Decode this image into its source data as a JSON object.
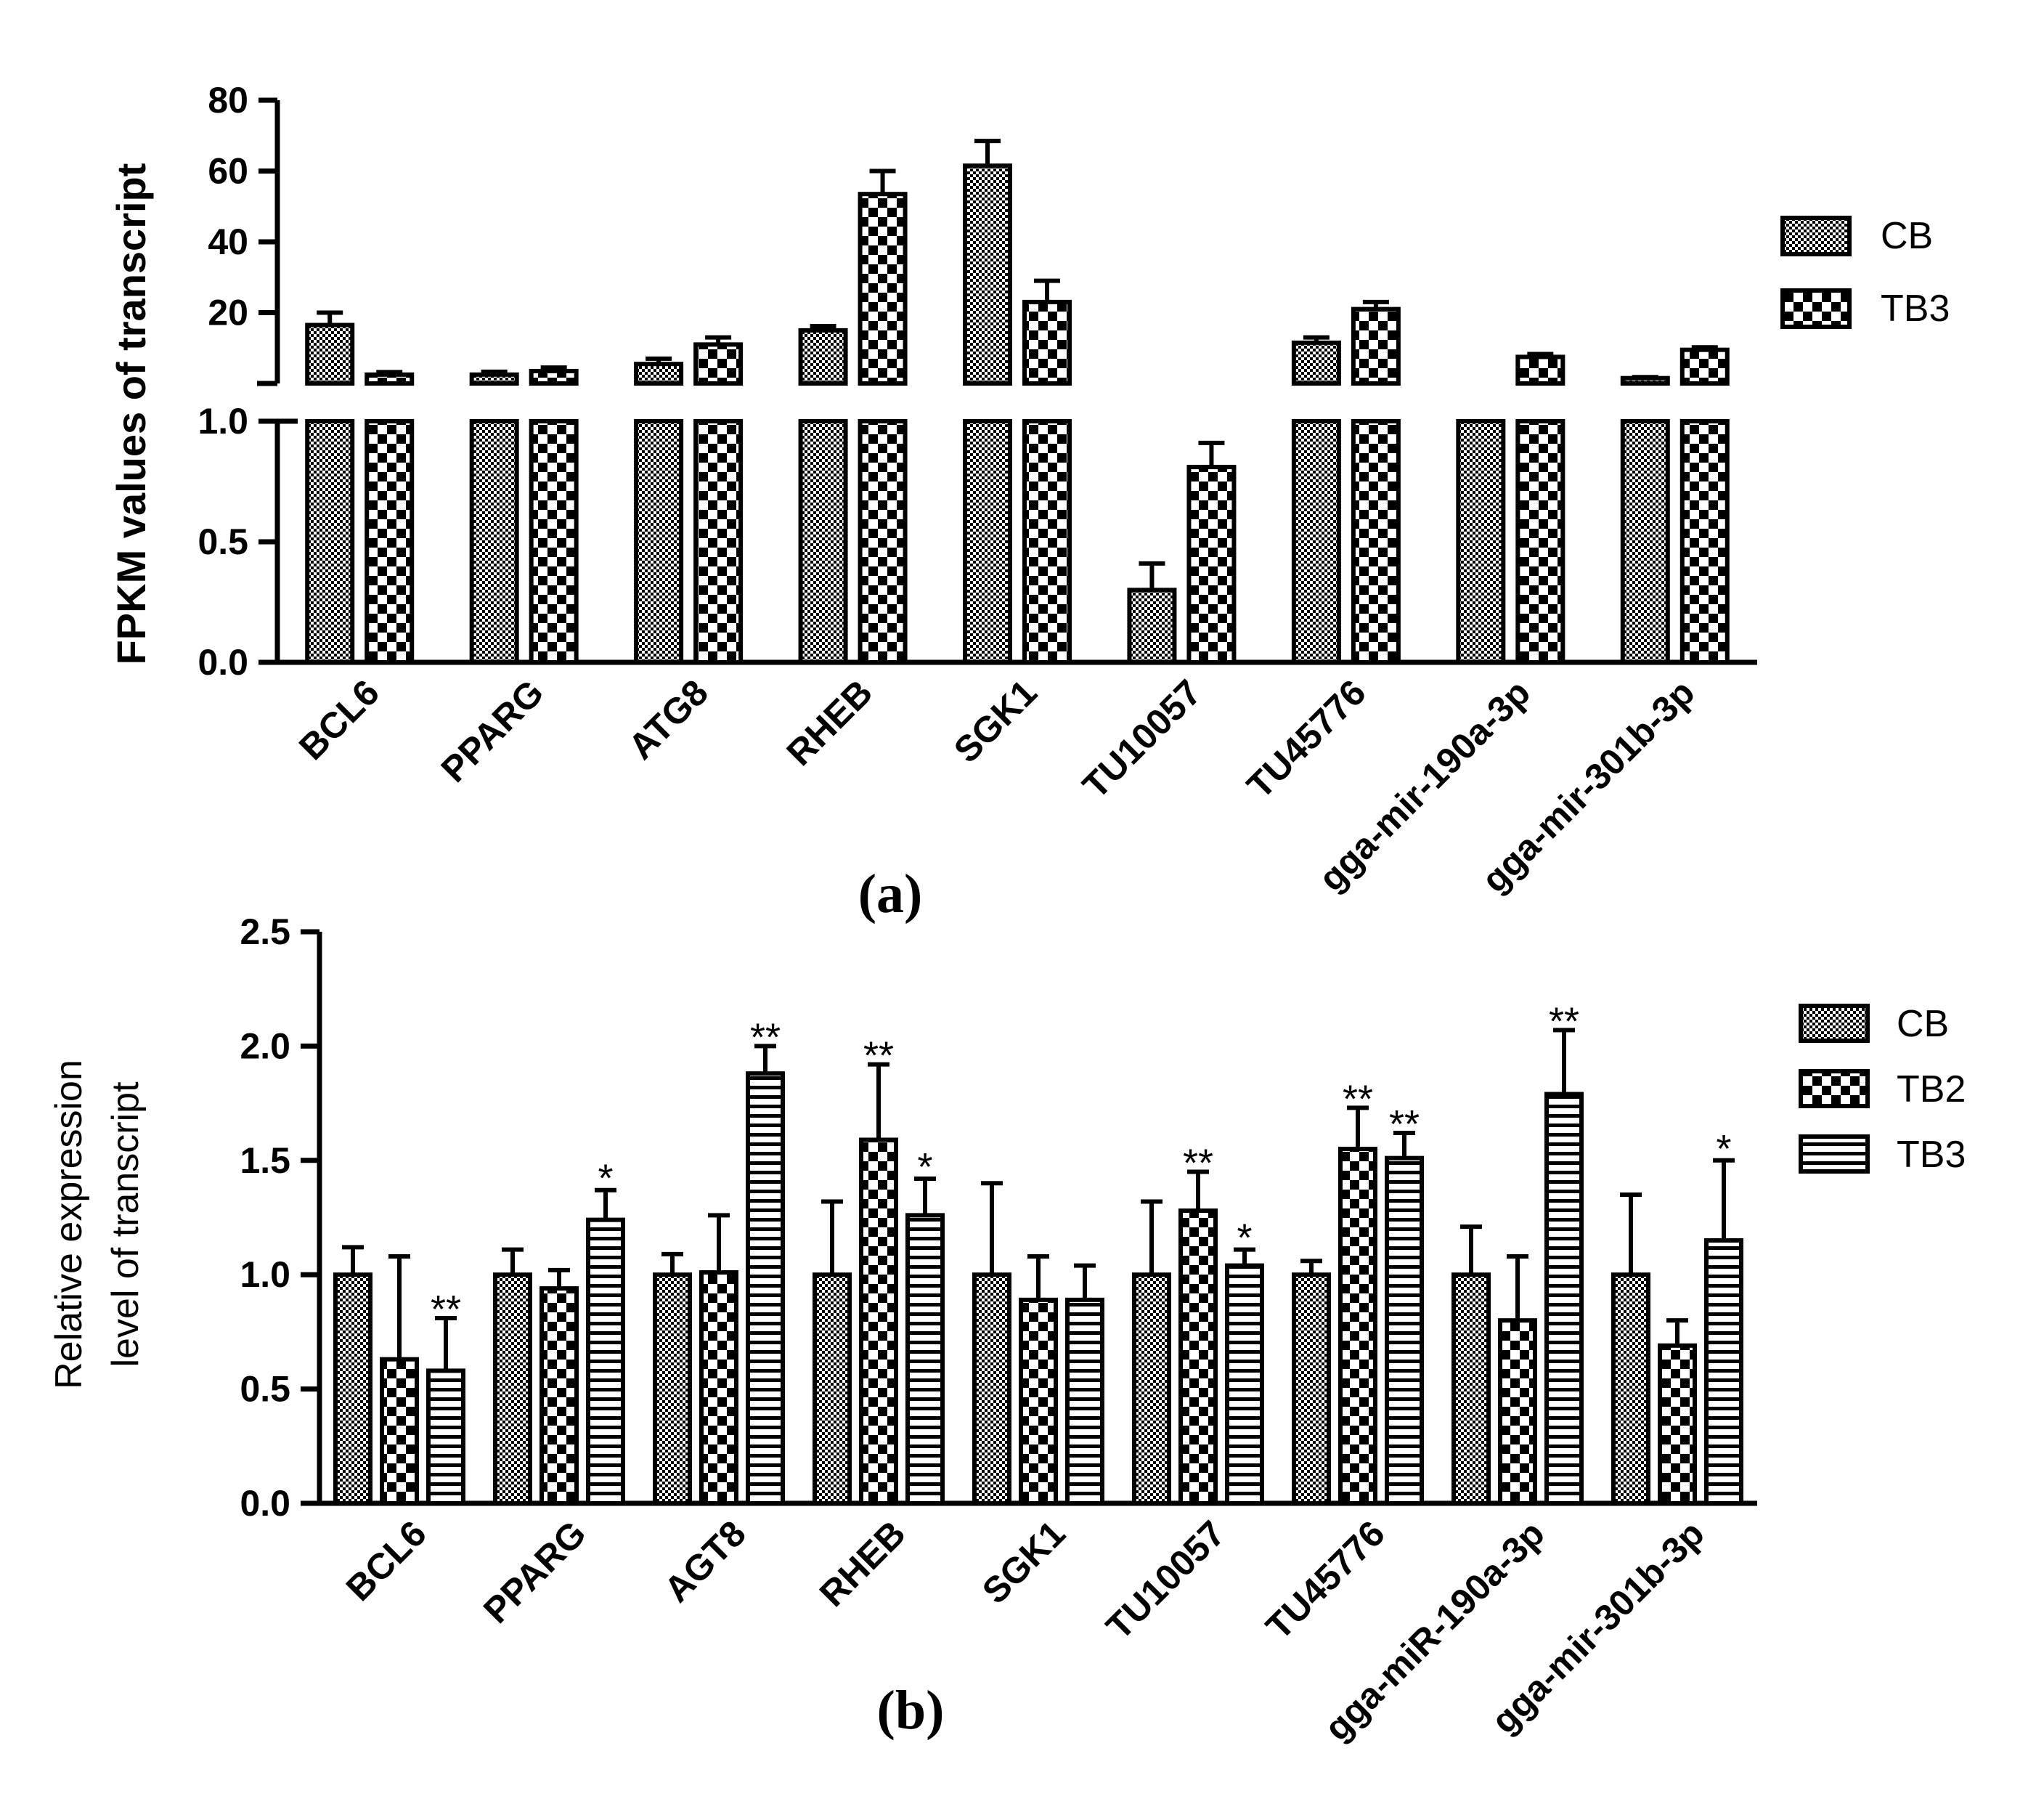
{
  "chart_data": [
    {
      "type": "bar",
      "panel_label": "(a)",
      "ylabel": "FPKM  values of  transcript",
      "y_axis": "broken",
      "y_lower_range": [
        0,
        1.0
      ],
      "y_lower_ticks": [
        "0.0",
        "0.5",
        "1.0"
      ],
      "y_upper_range": [
        0,
        80
      ],
      "y_upper_ticks": [
        "20",
        "40",
        "60",
        "80"
      ],
      "categories": [
        "BCL6",
        "PPARG",
        "ATG8",
        "RHEB",
        "SGK1",
        "TU10057",
        "TU45776",
        "gga-mir-190a-3p",
        "gga-mir-301b-3p"
      ],
      "legend": [
        "CB",
        "TB3"
      ],
      "legend_position": "right",
      "series": [
        {
          "name": "CB",
          "pattern": "fine-check",
          "values": [
            16.5,
            2.5,
            5.5,
            15,
            61.5,
            0.3,
            11.5,
            1.0,
            1.5
          ],
          "errors": [
            3.5,
            0.8,
            1.5,
            1.2,
            7,
            0.11,
            1.5,
            0,
            0.3
          ]
        },
        {
          "name": "TB3",
          "pattern": "coarse-check",
          "values": [
            2.5,
            3.5,
            11,
            53.5,
            23,
            0.81,
            21,
            7.5,
            9.5
          ],
          "errors": [
            0.7,
            1.0,
            2.0,
            6.5,
            6,
            0.1,
            2.0,
            0.8,
            0.7
          ]
        }
      ]
    },
    {
      "type": "bar",
      "panel_label": "(b)",
      "ylabel": [
        "Relative expression",
        "level of transcript"
      ],
      "ylim": [
        0,
        2.5
      ],
      "yticks": [
        "0.0",
        "0.5",
        "1.0",
        "1.5",
        "2.0",
        "2.5"
      ],
      "categories": [
        "BCL6",
        "PPARG",
        "AGT8",
        "RHEB",
        "SGK1",
        "TU10057",
        "TU45776",
        "gga-miR-190a-3p",
        "gga-mir-301b-3p"
      ],
      "legend": [
        "CB",
        "TB2",
        "TB3"
      ],
      "legend_position": "right",
      "series": [
        {
          "name": "CB",
          "pattern": "fine-check",
          "values": [
            1.0,
            1.0,
            1.0,
            1.0,
            1.0,
            1.0,
            1.0,
            1.0,
            1.0
          ],
          "errors": [
            0.12,
            0.11,
            0.09,
            0.32,
            0.4,
            0.32,
            0.06,
            0.21,
            0.35
          ],
          "significance": [
            "",
            "",
            "",
            "",
            "",
            "",
            "",
            "",
            ""
          ]
        },
        {
          "name": "TB2",
          "pattern": "coarse-check",
          "values": [
            0.63,
            0.94,
            1.01,
            1.59,
            0.89,
            1.28,
            1.55,
            0.8,
            0.69
          ],
          "errors": [
            0.45,
            0.08,
            0.25,
            0.33,
            0.19,
            0.17,
            0.18,
            0.28,
            0.11
          ],
          "significance": [
            "",
            "",
            "",
            "**",
            "",
            "**",
            "**",
            "",
            ""
          ]
        },
        {
          "name": "TB3",
          "pattern": "horizontal-lines",
          "values": [
            0.58,
            1.24,
            1.88,
            1.26,
            0.89,
            1.04,
            1.51,
            1.79,
            1.15
          ],
          "errors": [
            0.23,
            0.13,
            0.12,
            0.16,
            0.15,
            0.07,
            0.11,
            0.28,
            0.35
          ],
          "significance": [
            "**",
            "*",
            "**",
            "*",
            "",
            "*",
            "**",
            "**",
            "*"
          ]
        }
      ]
    }
  ]
}
